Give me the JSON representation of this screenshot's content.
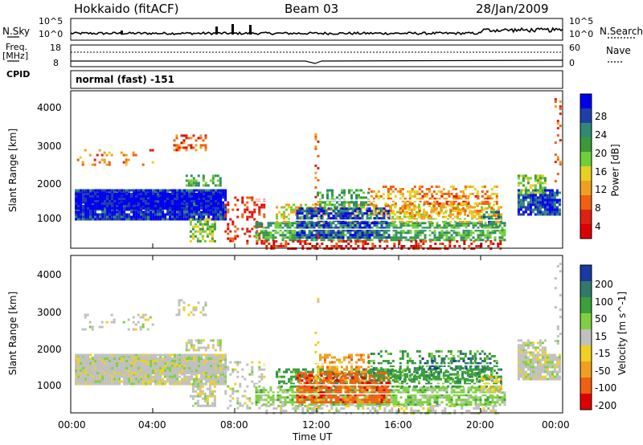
{
  "header": {
    "title": "Hokkaido (fitACF)",
    "beam": "Beam 03",
    "date": "28/Jan/2009"
  },
  "side_labels": {
    "nsky": "N.Sky",
    "freq_line1": "Freq.",
    "freq_line2": "[MHz]",
    "cpid": "CPID",
    "nsearch": "N.Search",
    "nave": "Nave",
    "mode": "normal (fast) -151"
  },
  "top_axis_ticks": {
    "nsky_left": [
      "10^5",
      "10^0"
    ],
    "nsky_right": [
      "10^5",
      "10^0"
    ],
    "freq_left": [
      "18",
      "8"
    ],
    "nave_right": [
      "60",
      "0"
    ]
  },
  "chart_data": [
    {
      "type": "heatmap",
      "name": "power",
      "ylabel": "Slant Range [km]",
      "ylim": [
        180,
        4500
      ],
      "yticks": [
        "4000",
        "3000",
        "2000",
        "1000"
      ],
      "colorbar_label": "Power [dB]",
      "colorbar_ticks": [
        "28",
        "24",
        "20",
        "16",
        "12",
        "8",
        "4"
      ],
      "colorbar_colors": [
        "#0000ee",
        "#1f3fa8",
        "#2f8a74",
        "#3a9a3a",
        "#6fcf3a",
        "#e8d020",
        "#f0a020",
        "#f06010",
        "#e02010",
        "#dd0000"
      ],
      "x_range_hours": [
        0,
        24
      ]
    },
    {
      "type": "heatmap",
      "name": "velocity",
      "ylabel": "Slant Range [km]",
      "ylim": [
        180,
        4500
      ],
      "yticks": [
        "4000",
        "3000",
        "2000",
        "1000"
      ],
      "colorbar_label": "Velocity [m s^-1]",
      "colorbar_ticks": [
        "200",
        "100",
        "50",
        "15",
        "-15",
        "-50",
        "-100",
        "-200"
      ],
      "colorbar_colors": [
        "#1a3aa0",
        "#2f7a6a",
        "#3aa03a",
        "#7fd040",
        "#c0c0c0",
        "#f0d020",
        "#f0a020",
        "#f06010",
        "#e00000"
      ],
      "xlabel": "Time UT",
      "xticks": [
        "00:00",
        "04:00",
        "08:00",
        "12:00",
        "16:00",
        "20:00",
        "00:00"
      ]
    }
  ]
}
